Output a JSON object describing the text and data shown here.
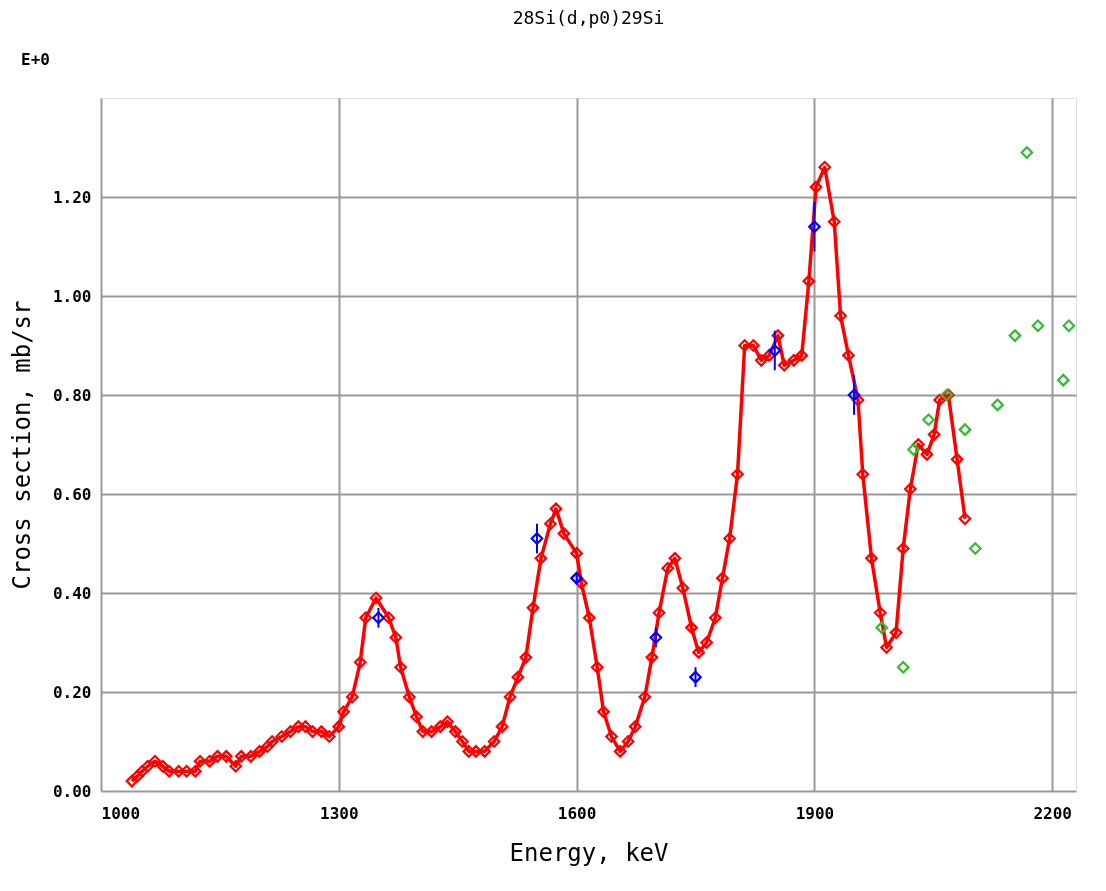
{
  "chart_data": {
    "type": "line",
    "title": "28Si(d,p0)29Si",
    "xlabel": "Energy, keV",
    "ylabel": "Cross section, mb/sr",
    "annotations": [
      "E+0"
    ],
    "xlim": [
      1000,
      2230
    ],
    "ylim": [
      0,
      1.4
    ],
    "xticks": [
      1000,
      1300,
      1600,
      1900,
      2200
    ],
    "yticks": [
      {
        "value": 0,
        "label": "0.00"
      },
      {
        "value": 0.2,
        "label": "0.20"
      },
      {
        "value": 0.4,
        "label": "0.40"
      },
      {
        "value": 0.6,
        "label": "0.60"
      },
      {
        "value": 0.8,
        "label": "0.80"
      },
      {
        "value": 1.0,
        "label": "1.00"
      },
      {
        "value": 1.2,
        "label": "1.20"
      }
    ],
    "grid": true,
    "marker": "diamond",
    "line_style": "solid",
    "series": [
      {
        "color": "#ff0000",
        "x": [
          1039,
          1046,
          1052,
          1059,
          1068,
          1078,
          1086,
          1098,
          1108,
          1119,
          1125,
          1137,
          1147,
          1158,
          1170,
          1177,
          1189,
          1200,
          1210,
          1216,
          1228,
          1239,
          1249,
          1258,
          1267,
          1278,
          1288,
          1300,
          1306,
          1317,
          1327,
          1334,
          1347,
          1363,
          1372,
          1378,
          1389,
          1398,
          1406,
          1417,
          1428,
          1437,
          1447,
          1456,
          1464,
          1473,
          1484,
          1496,
          1506,
          1516,
          1526,
          1536,
          1545,
          1555,
          1567,
          1574,
          1584,
          1600,
          1606,
          1616,
          1626,
          1634,
          1644,
          1655,
          1665,
          1674,
          1686,
          1695,
          1704,
          1715,
          1724,
          1734,
          1745,
          1754,
          1764,
          1775,
          1784,
          1793,
          1803,
          1812,
          1823,
          1833,
          1843,
          1854,
          1862,
          1874,
          1884,
          1893,
          1902,
          1913,
          1925,
          1933,
          1943,
          1955,
          1961,
          1972,
          1983,
          1991,
          2003,
          2012,
          2021,
          2031,
          2042,
          2051,
          2058,
          2069,
          2080,
          2090
        ],
        "values": [
          0.02,
          0.03,
          0.04,
          0.05,
          0.06,
          0.05,
          0.04,
          0.04,
          0.04,
          0.04,
          0.06,
          0.06,
          0.07,
          0.07,
          0.05,
          0.07,
          0.07,
          0.08,
          0.09,
          0.1,
          0.11,
          0.12,
          0.13,
          0.13,
          0.12,
          0.12,
          0.11,
          0.13,
          0.16,
          0.19,
          0.26,
          0.35,
          0.39,
          0.35,
          0.31,
          0.25,
          0.19,
          0.15,
          0.12,
          0.12,
          0.13,
          0.14,
          0.12,
          0.1,
          0.08,
          0.08,
          0.08,
          0.1,
          0.13,
          0.19,
          0.23,
          0.27,
          0.37,
          0.47,
          0.54,
          0.57,
          0.52,
          0.48,
          0.42,
          0.35,
          0.25,
          0.16,
          0.11,
          0.08,
          0.1,
          0.13,
          0.19,
          0.27,
          0.36,
          0.45,
          0.47,
          0.41,
          0.33,
          0.28,
          0.3,
          0.35,
          0.43,
          0.51,
          0.64,
          0.9,
          0.9,
          0.87,
          0.88,
          0.92,
          0.86,
          0.87,
          0.88,
          1.03,
          1.22,
          1.26,
          1.15,
          0.96,
          0.88,
          0.79,
          0.64,
          0.47,
          0.36,
          0.29,
          0.32,
          0.49,
          0.61,
          0.7,
          0.68,
          0.72,
          0.79,
          0.8,
          0.67,
          0.55
        ]
      },
      {
        "type": "scatter",
        "color": "#0000ff",
        "x": [
          1350,
          1550,
          1600,
          1700,
          1750,
          1850,
          1900,
          1950
        ],
        "values": [
          0.35,
          0.51,
          0.43,
          0.31,
          0.23,
          0.89,
          1.14,
          0.8
        ],
        "errors": [
          0.02,
          0.03,
          0.01,
          0.02,
          0.02,
          0.04,
          0.05,
          0.04
        ]
      },
      {
        "type": "scatter",
        "color": "#33bb33",
        "x": [
          1985,
          2012,
          2025,
          2044,
          2067,
          2090,
          2103,
          2131,
          2153,
          2168,
          2182,
          2214,
          2221
        ],
        "values": [
          0.33,
          0.25,
          0.69,
          0.75,
          0.8,
          0.73,
          0.49,
          0.78,
          0.92,
          1.29,
          0.94,
          0.83,
          0.94
        ]
      }
    ]
  }
}
